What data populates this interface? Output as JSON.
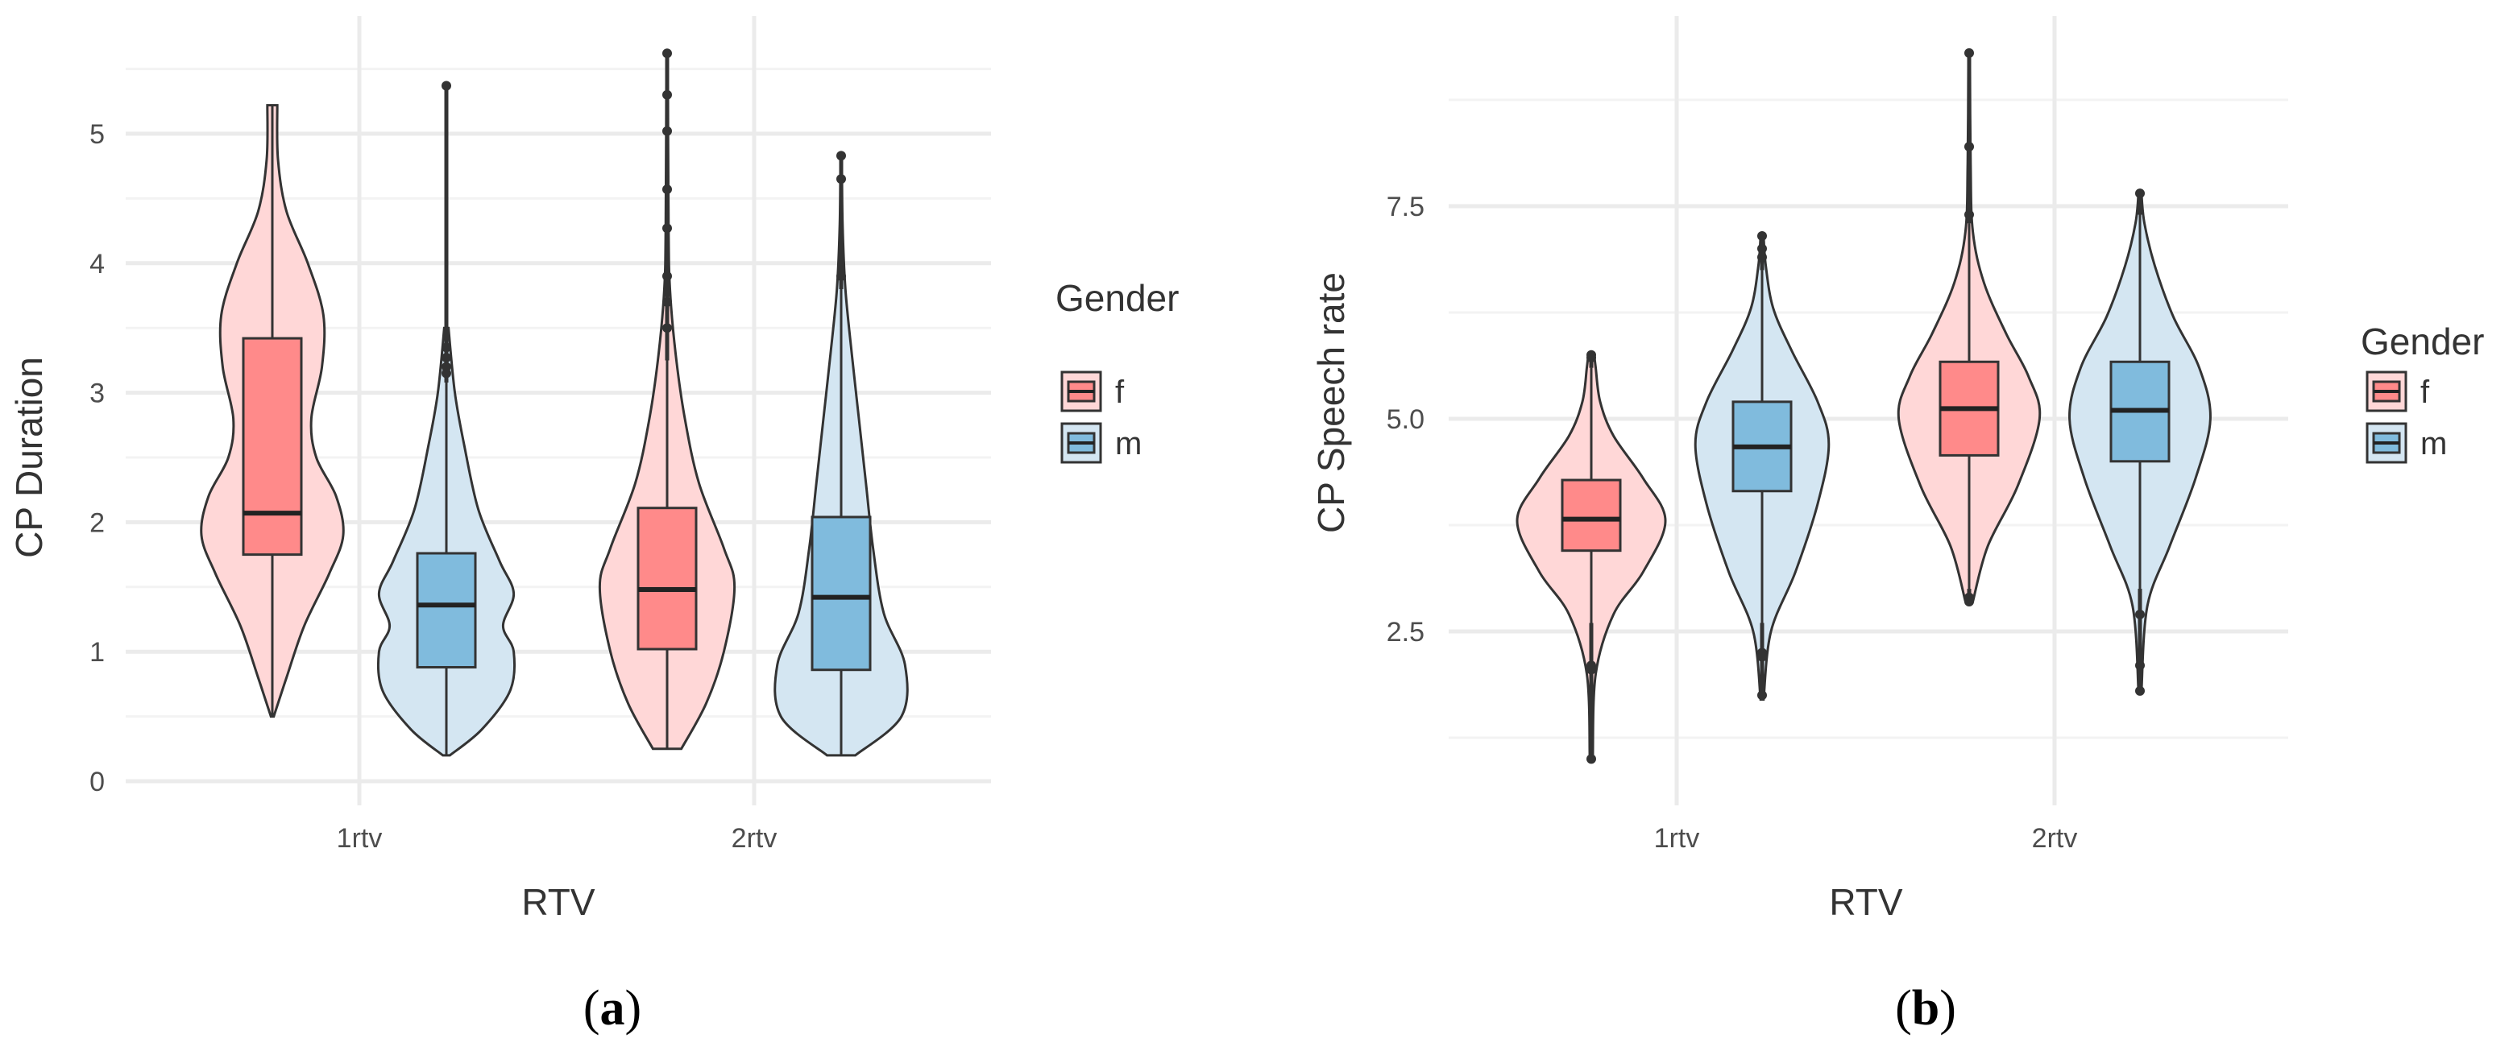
{
  "colors": {
    "f_violin": "#ffd7d7",
    "f_box": "#ff8a8a",
    "m_violin": "#d4e6f2",
    "m_box": "#80bbdd",
    "stroke": "#333333",
    "grid": "#ebebeb"
  },
  "chart_data": [
    {
      "type": "violin",
      "caption_open": "(",
      "caption_letter": "a",
      "caption_close": ")",
      "xlabel": "RTV",
      "ylabel": "CP Duration",
      "categories": [
        "1rtv",
        "2rtv"
      ],
      "ylim": [
        0,
        5.8
      ],
      "yticks": [
        0,
        1,
        2,
        3,
        4,
        5
      ],
      "ytick_labels": [
        "0",
        "1",
        "2",
        "3",
        "4",
        "5"
      ],
      "grid": true,
      "legend": {
        "title": "Gender",
        "placement": "right",
        "entries": [
          "f",
          "m"
        ]
      },
      "groups": [
        {
          "category": "1rtv",
          "gender": "f",
          "density": [
            [
              0.5,
              0.02
            ],
            [
              0.8,
              0.2
            ],
            [
              1.2,
              0.45
            ],
            [
              1.6,
              0.8
            ],
            [
              1.9,
              1
            ],
            [
              2.2,
              0.9
            ],
            [
              2.5,
              0.62
            ],
            [
              2.8,
              0.55
            ],
            [
              3.2,
              0.7
            ],
            [
              3.6,
              0.72
            ],
            [
              4.0,
              0.5
            ],
            [
              4.4,
              0.2
            ],
            [
              4.8,
              0.08
            ],
            [
              5.22,
              0.07
            ]
          ],
          "box": {
            "whisker_low": 0.5,
            "q1": 1.75,
            "median": 2.07,
            "q3": 3.42,
            "whisker_high": 5.22
          },
          "outliers": []
        },
        {
          "category": "1rtv",
          "gender": "m",
          "density": [
            [
              0.2,
              0.05
            ],
            [
              0.4,
              0.5
            ],
            [
              0.7,
              0.9
            ],
            [
              1.0,
              0.95
            ],
            [
              1.2,
              0.8
            ],
            [
              1.45,
              0.95
            ],
            [
              1.7,
              0.75
            ],
            [
              2.1,
              0.45
            ],
            [
              2.6,
              0.25
            ],
            [
              3.0,
              0.12
            ],
            [
              3.5,
              0.03
            ]
          ],
          "box": {
            "whisker_low": 0.2,
            "q1": 0.88,
            "median": 1.36,
            "q3": 1.76,
            "whisker_high": 3.08
          },
          "outliers": [
            3.15,
            3.2,
            3.27,
            3.35,
            5.37
          ]
        },
        {
          "category": "2rtv",
          "gender": "f",
          "density": [
            [
              0.25,
              0.2
            ],
            [
              0.6,
              0.55
            ],
            [
              1.0,
              0.8
            ],
            [
              1.5,
              0.95
            ],
            [
              1.8,
              0.8
            ],
            [
              2.3,
              0.45
            ],
            [
              2.8,
              0.25
            ],
            [
              3.3,
              0.12
            ],
            [
              3.8,
              0.04
            ],
            [
              4.3,
              0.02
            ],
            [
              5.62,
              0.01
            ]
          ],
          "box": {
            "whisker_low": 0.25,
            "q1": 1.02,
            "median": 1.48,
            "q3": 2.11,
            "whisker_high": 3.25
          },
          "outliers": [
            3.5,
            3.7,
            3.9,
            4.27,
            4.57,
            5.02,
            5.3,
            5.62
          ]
        },
        {
          "category": "2rtv",
          "gender": "m",
          "density": [
            [
              0.2,
              0.2
            ],
            [
              0.5,
              0.85
            ],
            [
              0.9,
              0.9
            ],
            [
              1.3,
              0.6
            ],
            [
              1.8,
              0.45
            ],
            [
              2.3,
              0.35
            ],
            [
              2.8,
              0.25
            ],
            [
              3.3,
              0.15
            ],
            [
              3.8,
              0.06
            ],
            [
              4.3,
              0.02
            ],
            [
              4.83,
              0.01
            ]
          ],
          "box": {
            "whisker_low": 0.2,
            "q1": 0.86,
            "median": 1.42,
            "q3": 2.04,
            "whisker_high": 3.8
          },
          "outliers": [
            3.9,
            4.65,
            4.83
          ]
        }
      ]
    },
    {
      "type": "violin",
      "caption_open": "(",
      "caption_letter": "b",
      "caption_close": ")",
      "xlabel": "RTV",
      "ylabel": "CP Speech rate",
      "categories": [
        "1rtv",
        "2rtv"
      ],
      "ylim": [
        0.7,
        9.5
      ],
      "yticks": [
        2.5,
        5.0,
        7.5
      ],
      "ytick_labels": [
        "2.5",
        "5.0",
        "7.5"
      ],
      "grid": true,
      "legend": {
        "title": "Gender",
        "placement": "right",
        "entries": [
          "f",
          "m"
        ]
      },
      "groups": [
        {
          "category": "1rtv",
          "gender": "f",
          "density": [
            [
              1.0,
              0.02
            ],
            [
              2.0,
              0.06
            ],
            [
              2.7,
              0.3
            ],
            [
              3.2,
              0.7
            ],
            [
              3.8,
              1
            ],
            [
              4.3,
              0.7
            ],
            [
              4.8,
              0.3
            ],
            [
              5.2,
              0.12
            ],
            [
              5.6,
              0.06
            ],
            [
              5.75,
              0.04
            ]
          ],
          "box": {
            "whisker_low": 2.6,
            "q1": 3.45,
            "median": 3.82,
            "q3": 4.28,
            "whisker_high": 5.6
          },
          "outliers": [
            5.72,
            5.75,
            2.1,
            2.05,
            1.0
          ]
        },
        {
          "category": "1rtv",
          "gender": "m",
          "density": [
            [
              1.7,
              0.02
            ],
            [
              2.5,
              0.12
            ],
            [
              3.2,
              0.45
            ],
            [
              4.0,
              0.75
            ],
            [
              4.7,
              0.9
            ],
            [
              5.2,
              0.75
            ],
            [
              5.8,
              0.4
            ],
            [
              6.3,
              0.15
            ],
            [
              6.8,
              0.05
            ],
            [
              7.15,
              0.02
            ]
          ],
          "box": {
            "whisker_low": 2.6,
            "q1": 4.15,
            "median": 4.67,
            "q3": 5.2,
            "whisker_high": 6.75
          },
          "outliers": [
            6.9,
            7.0,
            7.15,
            2.25,
            2.2,
            1.75
          ]
        },
        {
          "category": "2rtv",
          "gender": "f",
          "density": [
            [
              2.85,
              0.05
            ],
            [
              3.5,
              0.25
            ],
            [
              4.2,
              0.65
            ],
            [
              5.0,
              0.95
            ],
            [
              5.5,
              0.8
            ],
            [
              6.0,
              0.5
            ],
            [
              6.6,
              0.2
            ],
            [
              7.2,
              0.05
            ],
            [
              8.0,
              0.02
            ],
            [
              9.3,
              0.01
            ]
          ],
          "box": {
            "whisker_low": 3.0,
            "q1": 4.57,
            "median": 5.12,
            "q3": 5.67,
            "whisker_high": 7.3
          },
          "outliers": [
            7.4,
            8.2,
            9.3,
            2.9,
            2.85
          ]
        },
        {
          "category": "2rtv",
          "gender": "m",
          "density": [
            [
              1.8,
              0.02
            ],
            [
              2.8,
              0.1
            ],
            [
              3.5,
              0.4
            ],
            [
              4.3,
              0.75
            ],
            [
              5.0,
              0.95
            ],
            [
              5.6,
              0.8
            ],
            [
              6.2,
              0.45
            ],
            [
              6.8,
              0.2
            ],
            [
              7.3,
              0.06
            ],
            [
              7.65,
              0.02
            ]
          ],
          "box": {
            "whisker_low": 3.0,
            "q1": 4.5,
            "median": 5.1,
            "q3": 5.67,
            "whisker_high": 7.4
          },
          "outliers": [
            7.65,
            2.7,
            2.1,
            1.8
          ]
        }
      ]
    }
  ]
}
